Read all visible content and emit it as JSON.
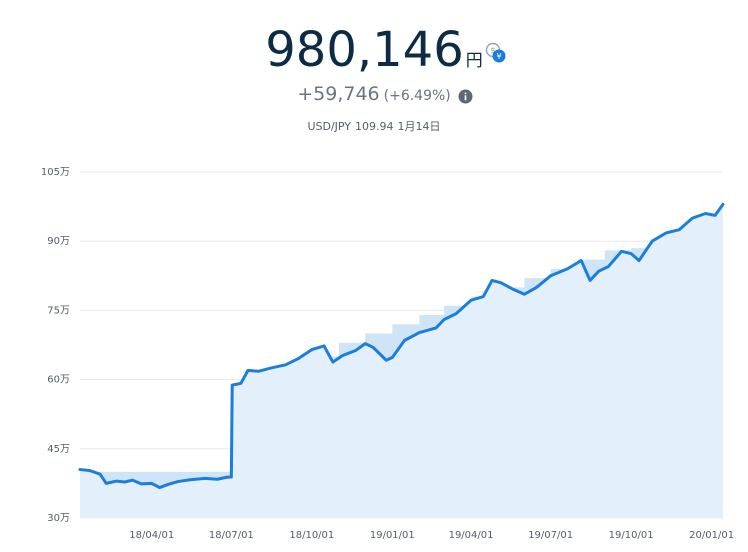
{
  "header": {
    "value": "980,146",
    "unit": "円",
    "change": "+59,746",
    "change_pct": "(+6.49%)",
    "fx_pair": "USD/JPY",
    "fx_rate": "109.94",
    "fx_date": "1月14日",
    "swap_icon": "currency-swap-icon",
    "info_icon": "info-icon"
  },
  "colors": {
    "line": "#1a7fdc",
    "principal_fill": "#cfe4f7",
    "area_fill": "#e3effa",
    "grid": "#e6e9ec",
    "text": "#0d2b45",
    "subtext": "#6b7480"
  },
  "chart_data": {
    "type": "line",
    "title": "",
    "xlabel": "",
    "ylabel": "",
    "ylim": [
      30,
      105
    ],
    "xlim": [
      "2018-01-09",
      "2020-01-14"
    ],
    "y_unit": "万",
    "y_ticks": [
      30,
      45,
      60,
      75,
      90,
      105
    ],
    "y_tick_labels": [
      "30万",
      "45万",
      "60万",
      "75万",
      "90万",
      "105万"
    ],
    "x_ticks": [
      "2018-04-01",
      "2018-07-01",
      "2018-10-01",
      "2019-01-01",
      "2019-04-01",
      "2019-07-01",
      "2019-10-01",
      "2020-01-01"
    ],
    "x_tick_labels": [
      "18/04/01",
      "18/07/01",
      "18/10/01",
      "19/01/01",
      "19/04/01",
      "19/07/01",
      "19/10/01",
      "20/01/01"
    ],
    "grid": true,
    "legend": "none",
    "series": [
      {
        "kind": "line",
        "points": [
          [
            "2018-01-09",
            40.5
          ],
          [
            "2018-01-20",
            40.3
          ],
          [
            "2018-02-01",
            39.5
          ],
          [
            "2018-02-08",
            37.5
          ],
          [
            "2018-02-20",
            38.0
          ],
          [
            "2018-03-01",
            37.8
          ],
          [
            "2018-03-10",
            38.2
          ],
          [
            "2018-03-20",
            37.4
          ],
          [
            "2018-04-01",
            37.5
          ],
          [
            "2018-04-10",
            36.6
          ],
          [
            "2018-04-20",
            37.3
          ],
          [
            "2018-05-01",
            37.9
          ],
          [
            "2018-05-15",
            38.3
          ],
          [
            "2018-06-01",
            38.6
          ],
          [
            "2018-06-15",
            38.4
          ],
          [
            "2018-06-25",
            38.8
          ],
          [
            "2018-07-01",
            38.9
          ],
          [
            "2018-07-02",
            58.8
          ],
          [
            "2018-07-12",
            59.2
          ],
          [
            "2018-07-20",
            62.0
          ],
          [
            "2018-08-01",
            61.8
          ],
          [
            "2018-08-15",
            62.5
          ],
          [
            "2018-09-01",
            63.2
          ],
          [
            "2018-09-15",
            64.5
          ],
          [
            "2018-10-01",
            66.5
          ],
          [
            "2018-10-15",
            67.3
          ],
          [
            "2018-10-25",
            63.8
          ],
          [
            "2018-11-05",
            65.2
          ],
          [
            "2018-11-20",
            66.3
          ],
          [
            "2018-12-01",
            67.8
          ],
          [
            "2018-12-10",
            67.0
          ],
          [
            "2018-12-25",
            64.2
          ],
          [
            "2019-01-01",
            64.8
          ],
          [
            "2019-01-15",
            68.5
          ],
          [
            "2019-02-01",
            70.2
          ],
          [
            "2019-02-20",
            71.2
          ],
          [
            "2019-03-01",
            73.0
          ],
          [
            "2019-03-15",
            74.3
          ],
          [
            "2019-04-01",
            77.2
          ],
          [
            "2019-04-15",
            78.0
          ],
          [
            "2019-04-25",
            81.5
          ],
          [
            "2019-05-05",
            81.0
          ],
          [
            "2019-05-20",
            79.5
          ],
          [
            "2019-06-01",
            78.5
          ],
          [
            "2019-06-15",
            80.0
          ],
          [
            "2019-07-01",
            82.5
          ],
          [
            "2019-07-20",
            84.0
          ],
          [
            "2019-08-05",
            85.8
          ],
          [
            "2019-08-15",
            81.5
          ],
          [
            "2019-08-25",
            83.5
          ],
          [
            "2019-09-05",
            84.5
          ],
          [
            "2019-09-20",
            87.8
          ],
          [
            "2019-10-01",
            87.3
          ],
          [
            "2019-10-10",
            85.8
          ],
          [
            "2019-10-25",
            90.0
          ],
          [
            "2019-11-10",
            91.8
          ],
          [
            "2019-11-25",
            92.5
          ],
          [
            "2019-12-10",
            95.0
          ],
          [
            "2019-12-25",
            96.0
          ],
          [
            "2020-01-05",
            95.6
          ],
          [
            "2020-01-14",
            98.0
          ]
        ]
      },
      {
        "kind": "step-area",
        "points": [
          [
            "2018-01-09",
            40.0
          ],
          [
            "2018-07-01",
            59.0
          ],
          [
            "2018-08-01",
            61.5
          ],
          [
            "2018-09-01",
            63.0
          ],
          [
            "2018-10-01",
            65.0
          ],
          [
            "2018-11-01",
            68.0
          ],
          [
            "2018-12-01",
            70.0
          ],
          [
            "2019-01-01",
            72.0
          ],
          [
            "2019-02-01",
            74.0
          ],
          [
            "2019-03-01",
            76.0
          ],
          [
            "2019-04-01",
            78.0
          ],
          [
            "2019-05-01",
            80.0
          ],
          [
            "2019-06-01",
            82.0
          ],
          [
            "2019-07-01",
            84.0
          ],
          [
            "2019-08-01",
            86.0
          ],
          [
            "2019-09-01",
            88.0
          ],
          [
            "2019-10-01",
            88.5
          ],
          [
            "2019-11-01",
            89.5
          ],
          [
            "2019-12-01",
            91.0
          ],
          [
            "2020-01-01",
            92.0
          ],
          [
            "2020-01-14",
            92.0
          ]
        ]
      }
    ]
  }
}
